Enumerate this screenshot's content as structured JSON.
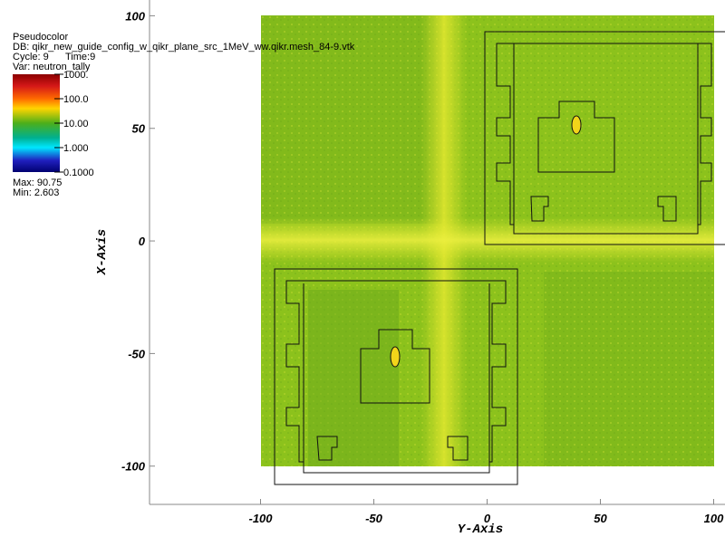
{
  "chart_data": {
    "type": "pseudocolor",
    "plot_name": "Pseudocolor",
    "db": "DB: qikr_new_guide_config_w_qikr_plane_src_1MeV_ww.qikr.mesh_84-9.vtk",
    "cycle": "Cycle: 9",
    "time": "Time:9",
    "var": "Var: neutron_tally",
    "max_label": "Max: 90.75",
    "min_label": "Min: 2.603",
    "x_label": "Y-Axis",
    "y_label": "X-Axis",
    "xlim": [
      -149,
      105
    ],
    "ylim": [
      -117,
      107
    ],
    "xticks": [
      -100,
      -50,
      0,
      50,
      100
    ],
    "yticks": [
      -100,
      -50,
      0,
      50,
      100
    ],
    "colorbar": {
      "log_scale": true,
      "lim": [
        0.1,
        1000
      ],
      "ticks": [
        {
          "value": 1000,
          "label": "1000."
        },
        {
          "value": 100,
          "label": "100.0"
        },
        {
          "value": 10,
          "label": "10.00"
        },
        {
          "value": 1,
          "label": "1.000"
        },
        {
          "value": 0.1,
          "label": "0.1000"
        }
      ]
    }
  }
}
